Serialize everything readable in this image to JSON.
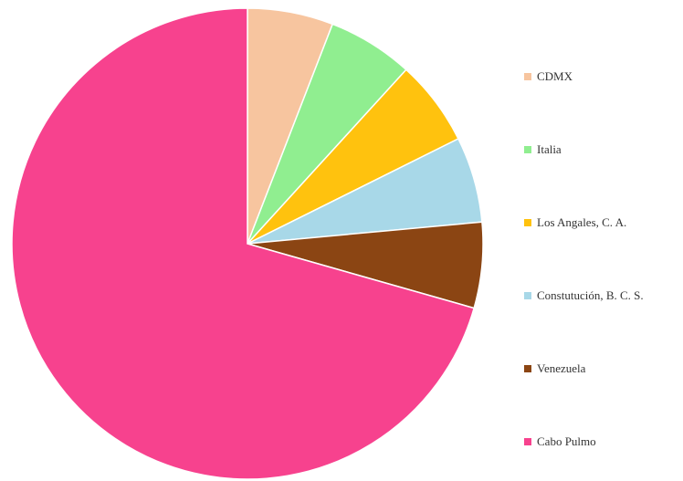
{
  "chart_data": {
    "type": "pie",
    "title": "",
    "start_angle_deg": 0,
    "direction": "clockwise",
    "legend_position": "right",
    "categories": [
      "CDMX",
      "Italia",
      "Los Angales, C. A.",
      "Constutución, B. C. S.",
      "Venezuela",
      "Cabo Pulmo"
    ],
    "values": [
      1,
      1,
      1,
      1,
      1,
      12
    ],
    "colors": [
      "#F7C59F",
      "#90EE90",
      "#FFC20E",
      "#A8D8E8",
      "#8B4513",
      "#F7428E"
    ]
  }
}
